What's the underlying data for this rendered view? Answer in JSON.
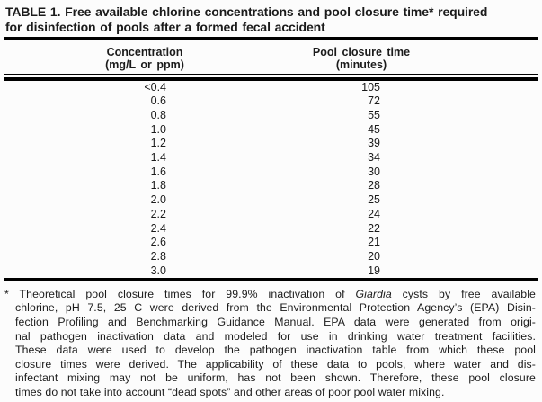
{
  "title": {
    "line1": "TABLE 1. Free available chlorine concentrations and pool closure time* required",
    "line2": "for disinfection of pools after a formed fecal accident"
  },
  "table": {
    "columns": [
      {
        "label": "Concentration",
        "sublabel": "(mg/L or ppm)"
      },
      {
        "label": "Pool closure time",
        "sublabel": "(minutes)"
      }
    ],
    "rows": [
      {
        "concentration": "<0.4",
        "closure_time": "105"
      },
      {
        "concentration": "0.6",
        "closure_time": "72"
      },
      {
        "concentration": "0.8",
        "closure_time": "55"
      },
      {
        "concentration": "1.0",
        "closure_time": "45"
      },
      {
        "concentration": "1.2",
        "closure_time": "39"
      },
      {
        "concentration": "1.4",
        "closure_time": "34"
      },
      {
        "concentration": "1.6",
        "closure_time": "30"
      },
      {
        "concentration": "1.8",
        "closure_time": "28"
      },
      {
        "concentration": "2.0",
        "closure_time": "25"
      },
      {
        "concentration": "2.2",
        "closure_time": "24"
      },
      {
        "concentration": "2.4",
        "closure_time": "22"
      },
      {
        "concentration": "2.6",
        "closure_time": "21"
      },
      {
        "concentration": "2.8",
        "closure_time": "20"
      },
      {
        "concentration": "3.0",
        "closure_time": "19"
      }
    ]
  },
  "footnote": {
    "line1_pre": "* Theoretical pool closure times for 99.9% inactivation of ",
    "line1_italic": "Giardia",
    "line1_post": " cysts by free available",
    "line2": "chlorine, pH 7.5, 25 C were derived from the Environmental Protection Agency’s (EPA) Disin-",
    "line3": "fection Profiling and Benchmarking Guidance Manual. EPA data were generated from origi-",
    "line4": "nal pathogen inactivation data and modeled for use in drinking water treatment facilities.",
    "line5": "These data were used to develop the pathogen inactivation table from which these pool",
    "line6": "closure times were derived. The applicability of these data to pools, where water and dis-",
    "line7": "infectant mixing may not be uniform, has not been shown. Therefore, these pool closure",
    "line8": "times do not take into account “dead spots” and other areas of poor pool water mixing."
  },
  "colors": {
    "background": "#fcfcfc",
    "text": "#1b1b1b",
    "rule": "#000000"
  }
}
